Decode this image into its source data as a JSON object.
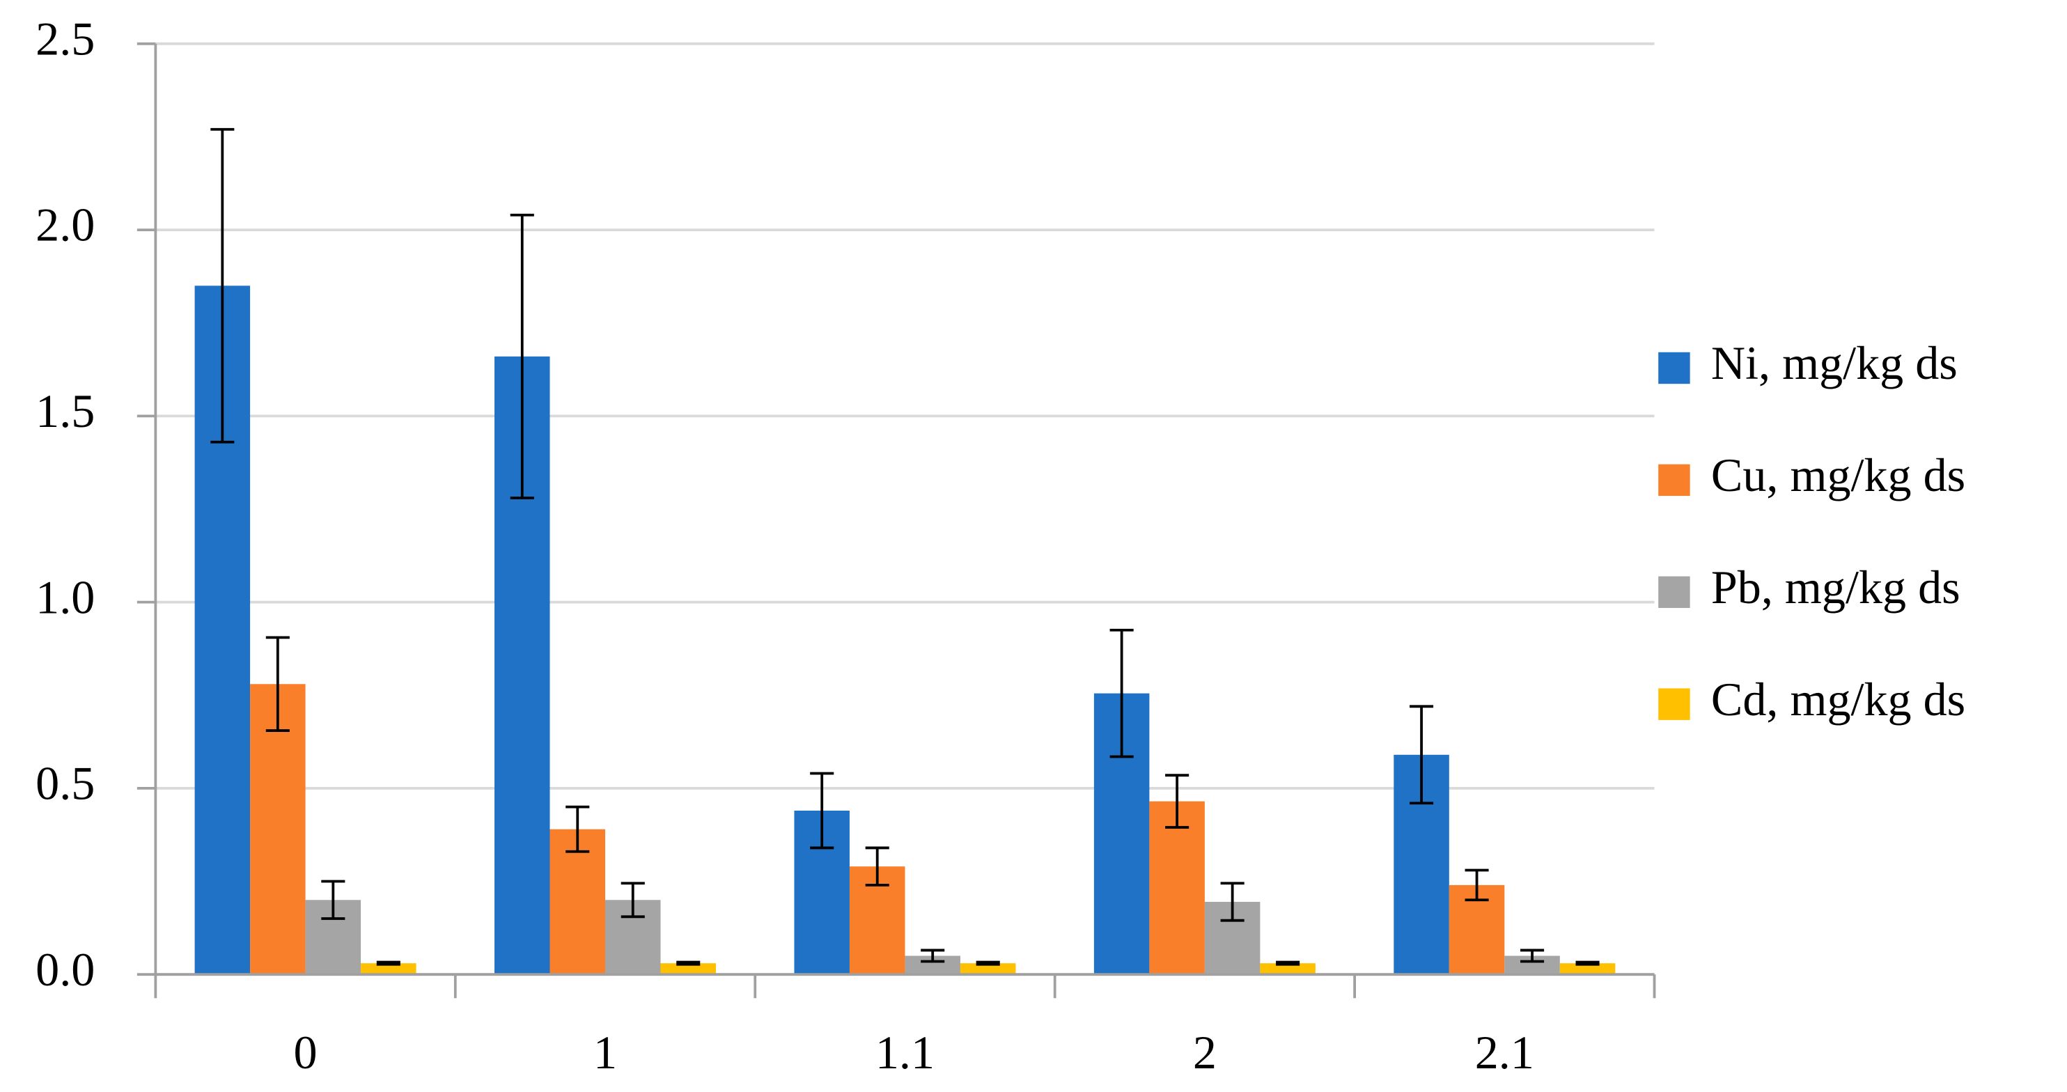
{
  "chart_data": {
    "type": "bar",
    "categories": [
      "0",
      "1",
      "1.1",
      "2",
      "2.1"
    ],
    "series": [
      {
        "name": "Ni, mg/kg ds",
        "color": "#1f72c6",
        "values": [
          1.85,
          1.66,
          0.44,
          0.755,
          0.59
        ],
        "errors": [
          0.42,
          0.38,
          0.1,
          0.17,
          0.13
        ]
      },
      {
        "name": "Cu, mg/kg ds",
        "color": "#fa7f2a",
        "values": [
          0.78,
          0.39,
          0.29,
          0.465,
          0.24
        ],
        "errors": [
          0.125,
          0.06,
          0.05,
          0.07,
          0.04
        ]
      },
      {
        "name": "Pb, mg/kg ds",
        "color": "#a5a5a5",
        "values": [
          0.2,
          0.2,
          0.05,
          0.195,
          0.05
        ],
        "errors": [
          0.05,
          0.045,
          0.015,
          0.05,
          0.015
        ]
      },
      {
        "name": "Cd, mg/kg ds",
        "color": "#ffc000",
        "values": [
          0.03,
          0.03,
          0.03,
          0.03,
          0.03
        ],
        "errors": [
          0.003,
          0.003,
          0.003,
          0.003,
          0.003
        ]
      }
    ],
    "ylim": [
      0,
      2.5
    ],
    "yticks": [
      {
        "value": 0,
        "label": "0.0"
      },
      0.5,
      {
        "value": 1,
        "label": "1.0"
      },
      1.5,
      {
        "value": 2,
        "label": "2.0"
      },
      2.5
    ],
    "grid": true,
    "legend": "right"
  }
}
